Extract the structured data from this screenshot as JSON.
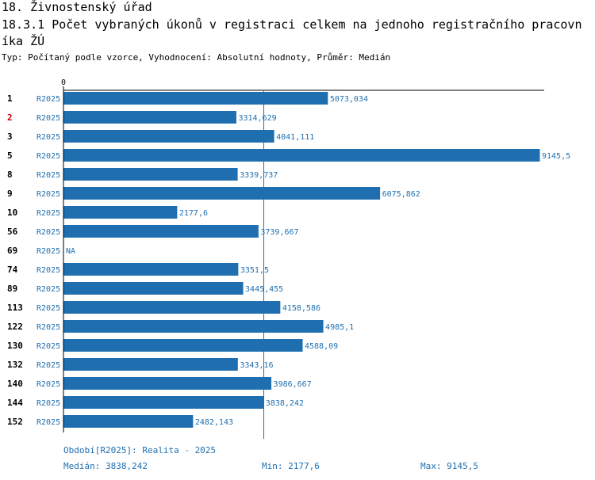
{
  "header": {
    "title": "18. Živnostenský úřad",
    "subtitle": "18.3.1 Počet vybraných úkonů v registraci celkem na jednoho registračního pracovníka ŽÚ",
    "info": "Typ: Počítaný podle vzorce, Vyhodnocení: Absolutní hodnoty, Průměr: Medián"
  },
  "chart_data": {
    "type": "bar",
    "orientation": "horizontal",
    "axis_zero_label": "0",
    "xlim": [
      0,
      9145.5
    ],
    "categories": [
      "1",
      "2",
      "3",
      "5",
      "8",
      "9",
      "10",
      "56",
      "69",
      "74",
      "89",
      "113",
      "122",
      "130",
      "132",
      "140",
      "144",
      "152"
    ],
    "highlighted_category": "2",
    "series": [
      {
        "name": "R2025",
        "values": [
          5073.034,
          3314.629,
          4041.111,
          9145.5,
          3339.737,
          6075.862,
          2177.6,
          3739.667,
          null,
          3351.5,
          3445.455,
          4158.586,
          4985.1,
          4588.09,
          3343.16,
          3986.667,
          3838.242,
          2482.143
        ],
        "labels": [
          "5073,034",
          "3314,629",
          "4041,111",
          "9145,5",
          "3339,737",
          "6075,862",
          "2177,6",
          "3739,667",
          "NA",
          "3351,5",
          "3445,455",
          "4158,586",
          "4985,1",
          "4588,09",
          "3343,16",
          "3986,667",
          "3838,242",
          "2482,143"
        ]
      }
    ],
    "median_value": 3838.242,
    "colors": {
      "bar": "#1f6fb0",
      "label": "#1f6fb0",
      "highlight": "#cc0000",
      "median_line": "#1f6fb0"
    }
  },
  "footer": {
    "period": "Období[R2025]: Realita - 2025",
    "median": "Medián: 3838,242",
    "min": "Min: 2177,6",
    "max": "Max: 9145,5"
  }
}
